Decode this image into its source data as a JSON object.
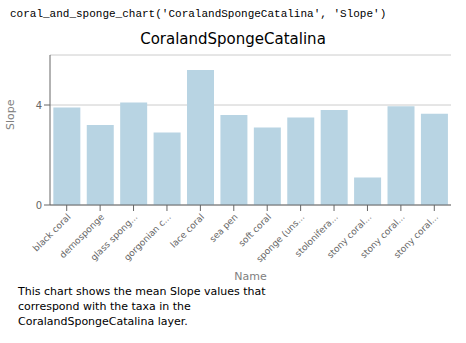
{
  "chart_data": {
    "type": "bar",
    "title": "CoralandSpongeCatalina",
    "xlabel": "Name",
    "ylabel": "Slope",
    "categories": [
      "black coral",
      "demosponge",
      "glass spong...",
      "gorgonian c...",
      "lace coral",
      "sea pen",
      "soft coral",
      "sponge (uns...",
      "stolonifera...",
      "stony coral...",
      "stony coral...",
      "stony coral..."
    ],
    "values": [
      3.9,
      3.2,
      4.1,
      2.9,
      5.4,
      3.6,
      3.1,
      3.5,
      3.8,
      1.1,
      3.95,
      3.65
    ],
    "color": "#b8d4e3",
    "ylim": [
      0,
      6
    ],
    "yticks": [
      0,
      4
    ],
    "grid": true,
    "annotations": [
      "coral_and_sponge_chart('CoralandSpongeCatalina', 'Slope')",
      "This chart shows the mean Slope values that\ncorrespond with the taxa in the\nCoralandSpongeCatalina layer."
    ]
  }
}
